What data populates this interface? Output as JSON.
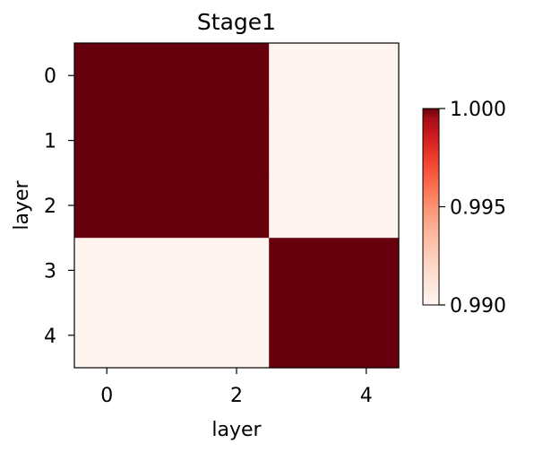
{
  "chart_data": {
    "type": "heatmap",
    "title": "Stage1",
    "xlabel": "layer",
    "ylabel": "layer",
    "x_ticks": [
      0,
      2,
      4
    ],
    "y_ticks": [
      0,
      1,
      2,
      3,
      4
    ],
    "matrix": [
      [
        1.0,
        1.0,
        1.0,
        0.99,
        0.99
      ],
      [
        1.0,
        1.0,
        1.0,
        0.99,
        0.99
      ],
      [
        1.0,
        1.0,
        1.0,
        0.99,
        0.99
      ],
      [
        0.99,
        0.99,
        0.99,
        1.0,
        1.0
      ],
      [
        0.99,
        0.99,
        0.99,
        1.0,
        1.0
      ]
    ],
    "colormap": "Reds",
    "colorbar": {
      "vmin": 0.99,
      "vmax": 1.0,
      "ticks": [
        "0.990",
        "0.995",
        "1.000"
      ],
      "position": "right"
    },
    "colors": {
      "low": "#fff5f0",
      "mid": "#f14432",
      "high": "#67000d"
    }
  }
}
